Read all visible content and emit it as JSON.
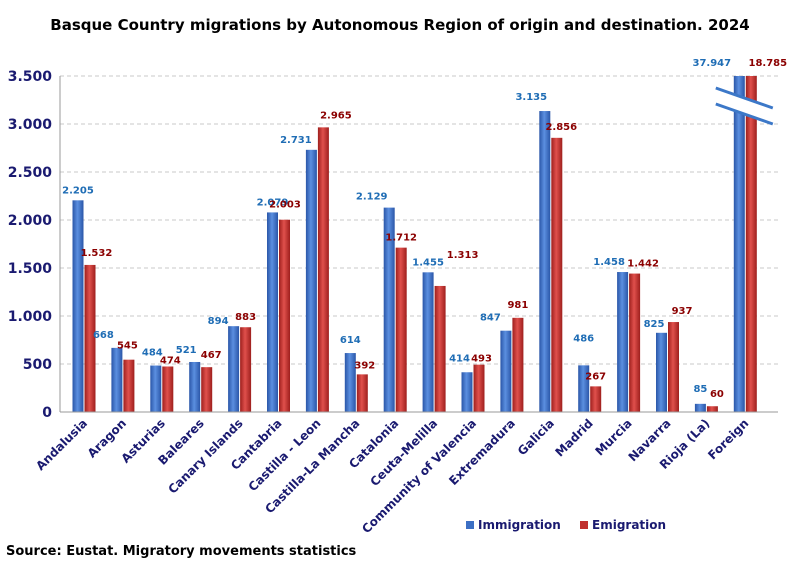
{
  "title": "Basque Country migrations by Autonomous Region of origin and destination. 2024",
  "source": "Source: Eustat. Migratory movements statistics",
  "colors": {
    "immigration": "#3c6fc4",
    "emigration": "#c0302e",
    "axis_text": "#1a1a70",
    "immigration_label": "#1f6db5",
    "emigration_label": "#8b0000"
  },
  "chart_data": {
    "type": "bar",
    "title": "Basque Country migrations by Autonomous Region of origin and destination. 2024",
    "categories": [
      "Andalusia",
      "Aragon",
      "Asturias",
      "Baleares",
      "Canary Islands",
      "Cantabria",
      "Castilla - Leon",
      "Castilla-La Mancha",
      "Catalonia",
      "Ceuta-Melilla",
      "Community of Valencia",
      "Extremadura",
      "Galicia",
      "Madrid",
      "Murcia",
      "Navarra",
      "Rioja (La)",
      "Foreign"
    ],
    "series": [
      {
        "name": "Immigration",
        "values": [
          2205,
          668,
          484,
          521,
          894,
          2079,
          2731,
          614,
          2129,
          1455,
          414,
          847,
          3135,
          486,
          1458,
          825,
          85,
          37947
        ],
        "labels": [
          "2.205",
          "668",
          "484",
          "521",
          "894",
          "2.079",
          "2.731",
          "614",
          "2.129",
          "1.455",
          "414",
          "847",
          "3.135",
          "486",
          "1.458",
          "825",
          "85",
          "37.947"
        ]
      },
      {
        "name": "Emigration",
        "values": [
          1532,
          545,
          474,
          467,
          883,
          2003,
          2965,
          392,
          1712,
          1313,
          493,
          981,
          2856,
          267,
          1442,
          937,
          60,
          18785
        ],
        "labels": [
          "1.532",
          "545",
          "474",
          "467",
          "883",
          "2.003",
          "2.965",
          "392",
          "1.712",
          "1.313",
          "493",
          "981",
          "2.856",
          "267",
          "1.442",
          "937",
          "60",
          "18.785"
        ]
      }
    ],
    "ylim": [
      0,
      3500
    ],
    "yticks": [
      0,
      500,
      1000,
      1500,
      2000,
      2500,
      3000,
      3500
    ],
    "ytick_labels": [
      "0",
      "500",
      "1.000",
      "1.500",
      "2.000",
      "2.500",
      "3.000",
      "3.500"
    ],
    "xlabel": "",
    "ylabel": "",
    "grid": true,
    "legend": "bottom-right",
    "axis_break": "Foreign"
  }
}
